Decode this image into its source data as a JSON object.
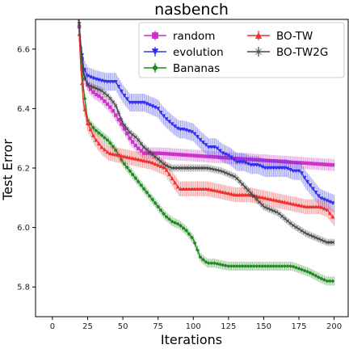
{
  "chart_data": {
    "type": "line",
    "title": "nasbench",
    "xlabel": "Iterations",
    "ylabel": "Test Error",
    "xlim": [
      -12,
      210
    ],
    "ylim": [
      5.7,
      6.7
    ],
    "xticks": [
      0,
      25,
      50,
      75,
      100,
      125,
      150,
      175,
      200
    ],
    "yticks": [
      5.8,
      6.0,
      6.2,
      6.4,
      6.6
    ],
    "xtick_labels": [
      "0",
      "25",
      "50",
      "75",
      "100",
      "125",
      "150",
      "175",
      "200"
    ],
    "ytick_labels": [
      "5.8",
      "6.0",
      "6.2",
      "6.4",
      "6.6"
    ],
    "grid": false,
    "legend_position": "top-right",
    "series": [
      {
        "name": "random",
        "color": "#cc33cc",
        "marker": "square",
        "points": [
          [
            15,
            6.95
          ],
          [
            18,
            6.75
          ],
          [
            20,
            6.6
          ],
          [
            23,
            6.5
          ],
          [
            26,
            6.47
          ],
          [
            30,
            6.45
          ],
          [
            34,
            6.44
          ],
          [
            38,
            6.42
          ],
          [
            42,
            6.4
          ],
          [
            46,
            6.37
          ],
          [
            50,
            6.34
          ],
          [
            55,
            6.3
          ],
          [
            60,
            6.27
          ],
          [
            65,
            6.25
          ],
          [
            70,
            6.25
          ],
          [
            75,
            6.25
          ],
          [
            200,
            6.21
          ]
        ],
        "err": 0.02
      },
      {
        "name": "evolution",
        "color": "#3333ee",
        "marker": "triangle-down",
        "points": [
          [
            15,
            6.95
          ],
          [
            18,
            6.75
          ],
          [
            20,
            6.62
          ],
          [
            22,
            6.54
          ],
          [
            25,
            6.51
          ],
          [
            30,
            6.5
          ],
          [
            38,
            6.49
          ],
          [
            45,
            6.49
          ],
          [
            50,
            6.45
          ],
          [
            55,
            6.42
          ],
          [
            60,
            6.42
          ],
          [
            65,
            6.42
          ],
          [
            70,
            6.41
          ],
          [
            75,
            6.4
          ],
          [
            78,
            6.38
          ],
          [
            82,
            6.36
          ],
          [
            87,
            6.34
          ],
          [
            90,
            6.33
          ],
          [
            93,
            6.33
          ],
          [
            100,
            6.32
          ],
          [
            106,
            6.29
          ],
          [
            111,
            6.27
          ],
          [
            116,
            6.27
          ],
          [
            121,
            6.25
          ],
          [
            126,
            6.24
          ],
          [
            131,
            6.22
          ],
          [
            136,
            6.22
          ],
          [
            141,
            6.21
          ],
          [
            146,
            6.21
          ],
          [
            151,
            6.2
          ],
          [
            156,
            6.2
          ],
          [
            161,
            6.2
          ],
          [
            166,
            6.2
          ],
          [
            171,
            6.19
          ],
          [
            176,
            6.19
          ],
          [
            180,
            6.16
          ],
          [
            185,
            6.13
          ],
          [
            190,
            6.1
          ],
          [
            195,
            6.09
          ],
          [
            200,
            6.08
          ]
        ],
        "err": 0.03
      },
      {
        "name": "Bananas",
        "color": "#228822",
        "marker": "diamond",
        "points": [
          [
            15,
            6.95
          ],
          [
            18,
            6.75
          ],
          [
            20,
            6.6
          ],
          [
            22,
            6.47
          ],
          [
            25,
            6.36
          ],
          [
            30,
            6.33
          ],
          [
            35,
            6.31
          ],
          [
            40,
            6.29
          ],
          [
            45,
            6.26
          ],
          [
            50,
            6.22
          ],
          [
            55,
            6.19
          ],
          [
            60,
            6.16
          ],
          [
            65,
            6.13
          ],
          [
            70,
            6.1
          ],
          [
            75,
            6.07
          ],
          [
            80,
            6.04
          ],
          [
            85,
            6.02
          ],
          [
            90,
            6.01
          ],
          [
            95,
            5.99
          ],
          [
            100,
            5.96
          ],
          [
            105,
            5.9
          ],
          [
            110,
            5.88
          ],
          [
            115,
            5.88
          ],
          [
            125,
            5.87
          ],
          [
            150,
            5.87
          ],
          [
            170,
            5.87
          ],
          [
            182,
            5.85
          ],
          [
            190,
            5.83
          ],
          [
            195,
            5.82
          ],
          [
            200,
            5.82
          ]
        ],
        "err": 0.015
      },
      {
        "name": "BO-TW",
        "color": "#ee3333",
        "marker": "triangle-up",
        "points": [
          [
            15,
            6.95
          ],
          [
            18,
            6.75
          ],
          [
            20,
            6.55
          ],
          [
            22,
            6.42
          ],
          [
            25,
            6.35
          ],
          [
            30,
            6.3
          ],
          [
            35,
            6.27
          ],
          [
            40,
            6.25
          ],
          [
            50,
            6.24
          ],
          [
            60,
            6.23
          ],
          [
            70,
            6.22
          ],
          [
            80,
            6.2
          ],
          [
            90,
            6.13
          ],
          [
            100,
            6.13
          ],
          [
            110,
            6.13
          ],
          [
            120,
            6.12
          ],
          [
            130,
            6.11
          ],
          [
            140,
            6.11
          ],
          [
            150,
            6.1
          ],
          [
            160,
            6.09
          ],
          [
            170,
            6.08
          ],
          [
            180,
            6.07
          ],
          [
            190,
            6.07
          ],
          [
            195,
            6.06
          ],
          [
            200,
            6.03
          ]
        ],
        "err": 0.025
      },
      {
        "name": "BO-TW2G",
        "color": "#444444",
        "marker": "x",
        "points": [
          [
            15,
            6.95
          ],
          [
            18,
            6.75
          ],
          [
            20,
            6.62
          ],
          [
            22,
            6.52
          ],
          [
            25,
            6.48
          ],
          [
            30,
            6.47
          ],
          [
            35,
            6.46
          ],
          [
            40,
            6.44
          ],
          [
            45,
            6.41
          ],
          [
            50,
            6.35
          ],
          [
            55,
            6.32
          ],
          [
            60,
            6.3
          ],
          [
            65,
            6.27
          ],
          [
            70,
            6.25
          ],
          [
            75,
            6.23
          ],
          [
            80,
            6.21
          ],
          [
            85,
            6.2
          ],
          [
            90,
            6.2
          ],
          [
            100,
            6.2
          ],
          [
            110,
            6.2
          ],
          [
            120,
            6.19
          ],
          [
            130,
            6.17
          ],
          [
            140,
            6.12
          ],
          [
            150,
            6.07
          ],
          [
            160,
            6.05
          ],
          [
            170,
            6.01
          ],
          [
            180,
            5.98
          ],
          [
            190,
            5.96
          ],
          [
            195,
            5.95
          ],
          [
            200,
            5.95
          ]
        ],
        "err": 0.012
      }
    ]
  }
}
